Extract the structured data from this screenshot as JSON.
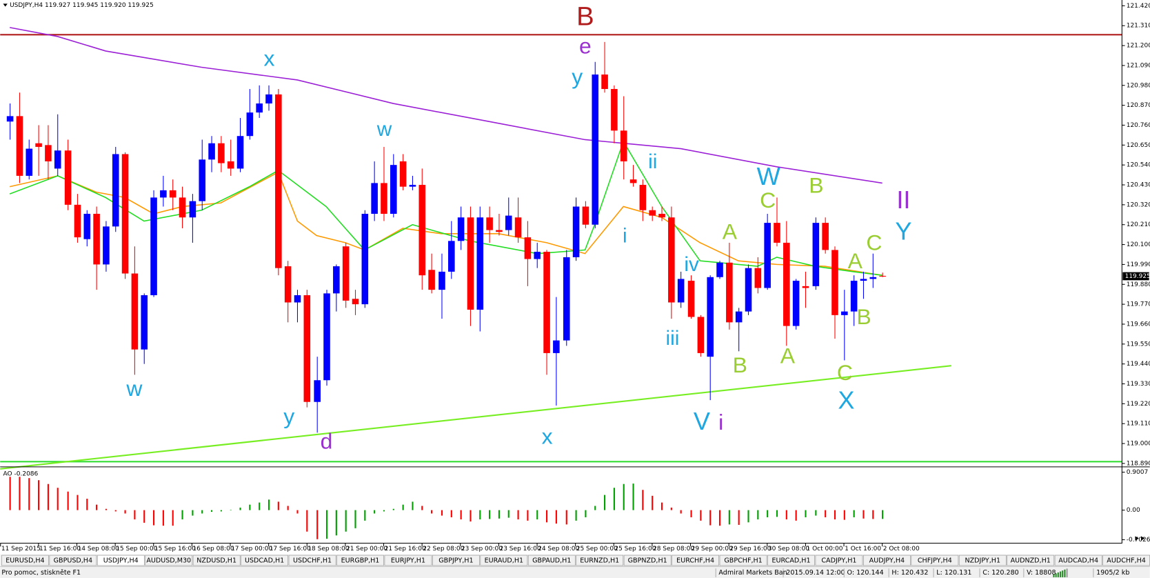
{
  "chart_data": {
    "type": "candlestick",
    "title": "USDJPY,H4  119.927 119.945 119.920 119.925",
    "open": [
      120.78,
      120.81,
      120.48,
      120.66,
      120.65,
      120.52,
      120.62,
      120.32,
      120.13,
      120.27,
      119.99,
      120.2,
      120.6,
      119.94,
      119.52,
      119.82,
      120.36,
      120.4,
      120.36,
      120.25,
      120.34,
      120.57,
      120.66,
      120.56,
      120.52,
      120.7,
      120.83,
      120.88,
      120.93,
      119.98,
      119.78,
      119.82,
      119.23,
      119.35,
      119.83,
      120.09,
      119.8,
      119.77,
      120.27,
      120.44,
      120.27,
      120.56,
      120.42,
      120.43,
      119.96,
      119.85,
      119.95,
      120.12,
      120.25,
      119.74,
      120.25,
      120.18,
      120.18,
      120.25,
      120.14,
      120.02,
      120.06,
      119.5,
      119.57,
      120.03,
      120.31,
      120.21,
      121.04,
      120.96,
      120.73,
      120.46,
      120.43,
      120.29,
      120.27,
      120.25,
      119.78,
      119.9,
      119.7,
      119.48,
      119.92,
      120.0,
      119.67,
      119.73,
      119.97,
      119.86,
      120.22,
      120.11,
      119.65,
      119.87,
      119.87,
      120.22,
      120.07,
      119.71,
      119.73,
      119.9,
      119.91,
      119.927
    ],
    "high": [
      120.88,
      120.94,
      120.68,
      120.76,
      120.76,
      120.82,
      120.68,
      120.38,
      120.29,
      120.31,
      120.23,
      120.64,
      120.61,
      120.09,
      119.83,
      120.4,
      120.48,
      120.46,
      120.42,
      120.38,
      120.68,
      120.7,
      120.7,
      120.68,
      120.8,
      120.96,
      120.98,
      120.98,
      120.96,
      120.01,
      119.85,
      119.85,
      119.48,
      119.85,
      119.99,
      120.11,
      119.85,
      120.29,
      120.56,
      120.64,
      120.6,
      120.6,
      120.48,
      120.52,
      120.05,
      120.05,
      120.23,
      120.31,
      120.31,
      120.31,
      120.31,
      120.27,
      120.36,
      120.36,
      120.23,
      120.11,
      120.07,
      119.81,
      120.07,
      120.36,
      120.34,
      121.11,
      121.22,
      120.98,
      120.92,
      120.54,
      120.46,
      120.31,
      120.31,
      120.31,
      119.95,
      119.93,
      119.71,
      119.93,
      120.01,
      120.11,
      119.75,
      119.99,
      120.03,
      120.27,
      120.36,
      120.23,
      119.91,
      119.95,
      120.25,
      120.25,
      120.09,
      119.85,
      119.93,
      119.95,
      120.05,
      119.945
    ],
    "low": [
      120.68,
      120.44,
      120.46,
      120.48,
      120.46,
      120.48,
      120.29,
      120.11,
      120.09,
      119.85,
      119.95,
      120.17,
      119.91,
      119.38,
      119.44,
      119.81,
      120.31,
      120.29,
      120.19,
      120.11,
      120.29,
      120.5,
      120.5,
      120.48,
      120.5,
      120.68,
      120.8,
      120.84,
      119.93,
      119.67,
      119.67,
      119.2,
      119.06,
      119.32,
      119.73,
      119.75,
      119.71,
      119.75,
      120.23,
      120.23,
      120.25,
      120.4,
      120.4,
      119.85,
      119.83,
      119.69,
      119.91,
      120.07,
      119.65,
      119.62,
      120.11,
      120.15,
      120.15,
      120.11,
      119.87,
      119.97,
      119.38,
      119.21,
      119.54,
      120.01,
      120.19,
      120.19,
      120.94,
      120.66,
      120.46,
      120.42,
      120.23,
      120.23,
      120.23,
      119.69,
      119.75,
      119.69,
      119.48,
      119.24,
      119.91,
      119.63,
      119.51,
      119.71,
      119.83,
      119.85,
      120.09,
      119.54,
      119.63,
      119.75,
      119.85,
      120.05,
      119.58,
      119.46,
      119.65,
      119.8,
      119.86,
      119.92
    ],
    "close": [
      120.81,
      120.48,
      120.63,
      120.64,
      120.56,
      120.62,
      120.32,
      120.14,
      120.27,
      119.99,
      120.2,
      120.6,
      119.94,
      119.52,
      119.82,
      120.36,
      120.4,
      120.36,
      120.25,
      120.34,
      120.57,
      120.66,
      120.55,
      120.52,
      120.7,
      120.83,
      120.88,
      120.93,
      119.97,
      119.78,
      119.82,
      119.23,
      119.35,
      119.83,
      119.98,
      119.79,
      119.77,
      120.27,
      120.44,
      120.27,
      120.54,
      120.42,
      120.43,
      119.93,
      119.85,
      119.95,
      120.12,
      120.25,
      119.74,
      120.25,
      120.18,
      120.17,
      120.26,
      120.14,
      120.02,
      120.06,
      119.5,
      119.57,
      120.03,
      120.31,
      120.21,
      121.04,
      120.96,
      120.73,
      120.56,
      120.44,
      120.29,
      120.26,
      120.25,
      119.78,
      119.91,
      119.7,
      119.5,
      119.92,
      120.0,
      119.67,
      119.73,
      119.97,
      119.86,
      120.22,
      120.11,
      119.65,
      119.9,
      119.86,
      120.22,
      120.07,
      119.71,
      119.73,
      119.9,
      119.91,
      119.92,
      119.925
    ],
    "up_color": "#0000ff",
    "down_color": "#ff0000",
    "xlim": [
      -1,
      116
    ],
    "xticks": [
      {
        "value": -1,
        "label": "11 Sep 2015"
      },
      {
        "value": 3,
        "label": "11 Sep 16:00"
      },
      {
        "value": 7,
        "label": "14 Sep 08:00"
      },
      {
        "value": 11,
        "label": "15 Sep 00:00"
      },
      {
        "value": 15,
        "label": "15 Sep 16:00"
      },
      {
        "value": 19,
        "label": "16 Sep 08:00"
      },
      {
        "value": 23,
        "label": "17 Sep 00:00"
      },
      {
        "value": 27,
        "label": "17 Sep 16:00"
      },
      {
        "value": 31,
        "label": "18 Sep 08:00"
      },
      {
        "value": 35,
        "label": "21 Sep 00:00"
      },
      {
        "value": 39,
        "label": "21 Sep 16:00"
      },
      {
        "value": 43,
        "label": "22 Sep 08:00"
      },
      {
        "value": 47,
        "label": "23 Sep 00:00"
      },
      {
        "value": 51,
        "label": "23 Sep 16:00"
      },
      {
        "value": 55,
        "label": "24 Sep 08:00"
      },
      {
        "value": 59,
        "label": "25 Sep 00:00"
      },
      {
        "value": 63,
        "label": "25 Sep 16:00"
      },
      {
        "value": 67,
        "label": "28 Sep 08:00"
      },
      {
        "value": 71,
        "label": "29 Sep 00:00"
      },
      {
        "value": 75,
        "label": "29 Sep 16:00"
      },
      {
        "value": 79,
        "label": "30 Sep 08:00"
      },
      {
        "value": 83,
        "label": "1 Oct 00:00"
      },
      {
        "value": 87,
        "label": "1 Oct 16:00"
      },
      {
        "value": 91,
        "label": "2 Oct 08:00"
      }
    ],
    "ylim": [
      118.873,
      121.452
    ],
    "yticks": [
      {
        "value": 121.42,
        "label": "121.420"
      },
      {
        "value": 121.31,
        "label": "121.310"
      },
      {
        "value": 121.2,
        "label": "121.200"
      },
      {
        "value": 121.09,
        "label": "121.090"
      },
      {
        "value": 120.98,
        "label": "120.980"
      },
      {
        "value": 120.87,
        "label": "120.870"
      },
      {
        "value": 120.76,
        "label": "120.760"
      },
      {
        "value": 120.65,
        "label": "120.650"
      },
      {
        "value": 120.54,
        "label": "120.540"
      },
      {
        "value": 120.43,
        "label": "120.430"
      },
      {
        "value": 120.32,
        "label": "120.320"
      },
      {
        "value": 120.21,
        "label": "120.210"
      },
      {
        "value": 120.1,
        "label": "120.100"
      },
      {
        "value": 119.99,
        "label": "119.990"
      },
      {
        "value": 119.88,
        "label": "119.880"
      },
      {
        "value": 119.77,
        "label": "119.770"
      },
      {
        "value": 119.66,
        "label": "119.660"
      },
      {
        "value": 119.55,
        "label": "119.550"
      },
      {
        "value": 119.44,
        "label": "119.440"
      },
      {
        "value": 119.33,
        "label": "119.330"
      },
      {
        "value": 119.22,
        "label": "119.220"
      },
      {
        "value": 119.11,
        "label": "119.110"
      },
      {
        "value": 119.0,
        "label": "119.000"
      },
      {
        "value": 118.89,
        "label": "118.890"
      }
    ],
    "last_price": 119.925,
    "overlays": [
      {
        "color": "#9b1fd6",
        "x": [
          0,
          5,
          10,
          20,
          30,
          40,
          50,
          60,
          70,
          80,
          91
        ],
        "values": [
          121.3,
          121.25,
          121.17,
          121.08,
          121.01,
          120.88,
          120.78,
          120.68,
          120.63,
          120.53,
          120.44
        ]
      },
      {
        "color": "#ff9900",
        "x": [
          0,
          5,
          9,
          12,
          15,
          18,
          22,
          28,
          30,
          32,
          35,
          37,
          41,
          45,
          51,
          56,
          60,
          64,
          68,
          72,
          76,
          80,
          85,
          91
        ],
        "values": [
          120.42,
          120.48,
          120.39,
          120.36,
          120.27,
          120.31,
          120.33,
          120.5,
          120.23,
          120.15,
          120.11,
          120.07,
          120.19,
          120.16,
          120.16,
          120.11,
          120.05,
          120.31,
          120.25,
          120.11,
          120.01,
          119.99,
          119.98,
          119.93
        ]
      },
      {
        "color": "#22dd22",
        "x": [
          0,
          5,
          10,
          14,
          20,
          25,
          28,
          33,
          37,
          42,
          48,
          55,
          60,
          61,
          64,
          68,
          72,
          78,
          80,
          84,
          88,
          91
        ],
        "values": [
          120.38,
          120.48,
          120.36,
          120.23,
          120.29,
          120.42,
          120.51,
          120.31,
          120.07,
          120.21,
          120.12,
          120.05,
          120.07,
          120.21,
          120.67,
          120.31,
          120.01,
          119.98,
          120.03,
          119.98,
          119.95,
          119.93
        ]
      }
    ],
    "levels": [
      {
        "value": 121.26,
        "color": "#b01c1c"
      },
      {
        "value": 118.9,
        "color": "#33dd33"
      }
    ],
    "trendlines": [
      {
        "color": "#77ee22",
        "x": [
          -1,
          98.2
        ],
        "values": [
          118.86,
          119.43
        ]
      }
    ],
    "annotations": [
      {
        "text": "B",
        "color": "#b01c1c"
      },
      {
        "text": "e",
        "color": "#9b30d0"
      },
      {
        "text": "x",
        "color": "#1ea7e1"
      },
      {
        "text": "y",
        "color": "#1ea7e1"
      },
      {
        "text": "w",
        "color": "#1ea7e1"
      },
      {
        "text": "ii",
        "color": "#1ea7e1"
      },
      {
        "text": "W",
        "color": "#1ea7e1"
      },
      {
        "text": "B",
        "color": "#9acd32"
      },
      {
        "text": "C",
        "color": "#9acd32"
      },
      {
        "text": "II",
        "color": "#9b30d0"
      },
      {
        "text": "i",
        "color": "#1ea7e1"
      },
      {
        "text": "A",
        "color": "#9acd32"
      },
      {
        "text": "Y",
        "color": "#1ea7e1"
      },
      {
        "text": "C",
        "color": "#9acd32"
      },
      {
        "text": "iv",
        "color": "#1ea7e1"
      },
      {
        "text": "A",
        "color": "#9acd32"
      },
      {
        "text": "iii",
        "color": "#1ea7e1"
      },
      {
        "text": "B",
        "color": "#9acd32"
      },
      {
        "text": "A",
        "color": "#9acd32"
      },
      {
        "text": "B",
        "color": "#9acd32"
      },
      {
        "text": "C",
        "color": "#9acd32"
      },
      {
        "text": "w",
        "color": "#1ea7e1"
      },
      {
        "text": "X",
        "color": "#1ea7e1"
      },
      {
        "text": "y",
        "color": "#1ea7e1"
      },
      {
        "text": "V",
        "color": "#1ea7e1"
      },
      {
        "text": "i",
        "color": "#9b30d0"
      },
      {
        "text": "d",
        "color": "#9b30d0"
      },
      {
        "text": "x",
        "color": "#1ea7e1"
      }
    ],
    "indicator": {
      "type": "bar",
      "title": "AO -0.2086",
      "values": [
        0.79,
        0.79,
        0.76,
        0.71,
        0.62,
        0.53,
        0.44,
        0.36,
        0.27,
        0.13,
        0.03,
        -0.03,
        -0.08,
        -0.22,
        -0.3,
        -0.36,
        -0.37,
        -0.37,
        -0.22,
        -0.13,
        -0.08,
        -0.04,
        -0.03,
        0.01,
        0.06,
        0.13,
        0.18,
        0.25,
        0.2,
        0.1,
        -0.08,
        -0.51,
        -0.69,
        -0.68,
        -0.6,
        -0.51,
        -0.43,
        -0.25,
        -0.08,
        -0.03,
        0.03,
        0.13,
        0.2,
        0.1,
        -0.08,
        -0.13,
        -0.17,
        -0.22,
        -0.27,
        -0.22,
        -0.21,
        -0.2,
        -0.18,
        -0.22,
        -0.25,
        -0.22,
        -0.29,
        -0.32,
        -0.34,
        -0.25,
        -0.17,
        0.1,
        0.36,
        0.53,
        0.62,
        0.63,
        0.48,
        0.34,
        0.18,
        0.06,
        -0.08,
        -0.17,
        -0.25,
        -0.36,
        -0.37,
        -0.34,
        -0.35,
        -0.29,
        -0.22,
        -0.17,
        -0.16,
        -0.22,
        -0.25,
        -0.17,
        -0.13,
        -0.17,
        -0.22,
        -0.23,
        -0.17,
        -0.2,
        -0.21,
        -0.2086
      ],
      "up_color": "#00a000",
      "down_color": "#ff0000",
      "ylim": [
        -0.775,
        1.0
      ],
      "yticks": [
        0.9007,
        {
          "value": 0,
          "label": "0.00"
        },
        -0.7026
      ]
    }
  },
  "tabs": [
    {
      "label": "EURUSD,H4"
    },
    {
      "label": "GBPUSD,H4"
    },
    {
      "label": "USDJPY,H4",
      "active": true
    },
    {
      "label": "AUDUSD,M30"
    },
    {
      "label": "NZDUSD,H1"
    },
    {
      "label": "USDCAD,H1"
    },
    {
      "label": "USDCHF,H1"
    },
    {
      "label": "EURGBP,H1"
    },
    {
      "label": "EURJPY,H1"
    },
    {
      "label": "GBPJPY,H1"
    },
    {
      "label": "EURAUD,H1"
    },
    {
      "label": "GBPAUD,H1"
    },
    {
      "label": "EURNZD,H1"
    },
    {
      "label": "GBPNZD,H1"
    },
    {
      "label": "EURCHF,H4"
    },
    {
      "label": "GBPCHF,H1"
    },
    {
      "label": "EURCAD,H1"
    },
    {
      "label": "CADJPY,H1"
    },
    {
      "label": "AUDJPY,H4"
    },
    {
      "label": "CHFJPY,H4"
    },
    {
      "label": "NZDJPY,H1"
    },
    {
      "label": "AUDNZD,H1"
    },
    {
      "label": "AUDCAD,H4"
    },
    {
      "label": "AUDCHF,H4"
    }
  ],
  "status": [
    "Pro pomoc, stiskněte F1",
    "Admiral Markets Ban",
    "2015.09.14 12:00",
    "O: 120.144",
    "H: 120.432",
    "L: 120.131",
    "C: 120.280",
    "V: 18808",
    "1905/2 kb"
  ]
}
